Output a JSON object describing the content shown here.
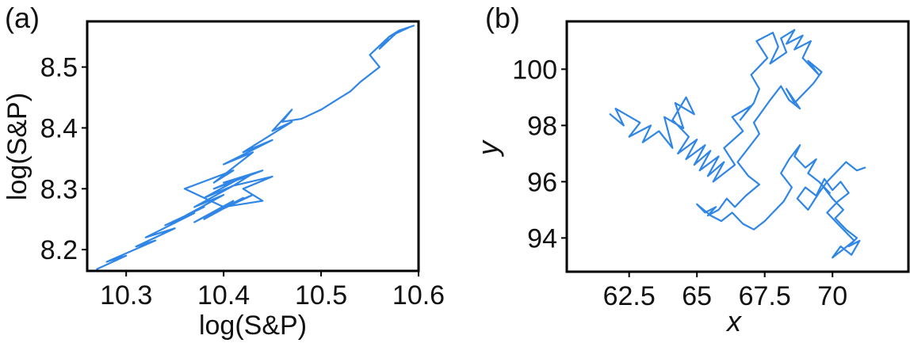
{
  "chart_data": [
    {
      "panel_label": "(a)",
      "type": "line",
      "xlabel": "log(S&P)",
      "ylabel": "log(S&P)",
      "xlim": [
        10.26,
        10.6
      ],
      "ylim": [
        8.165,
        8.575
      ],
      "xticks": [
        10.3,
        10.4,
        10.5,
        10.6
      ],
      "xtick_labels": [
        "10.3",
        "10.4",
        "10.5",
        "10.6"
      ],
      "yticks": [
        8.2,
        8.3,
        8.4,
        8.5
      ],
      "ytick_labels": [
        "8.2",
        "8.3",
        "8.4",
        "8.5"
      ],
      "grid": false,
      "line_color": "#2f86e6",
      "series": [
        {
          "x": [
            10.27,
            10.3,
            10.28,
            10.33,
            10.31,
            10.35,
            10.32,
            10.37,
            10.34,
            10.38,
            10.36,
            10.4,
            10.37,
            10.41,
            10.38,
            10.42,
            10.39,
            10.44,
            10.4,
            10.43,
            10.41,
            10.45,
            10.42,
            10.44,
            10.4,
            10.43,
            10.39,
            10.42,
            10.38,
            10.41,
            10.37,
            10.4,
            10.36,
            10.41,
            10.39,
            10.43,
            10.4,
            10.45,
            10.42,
            10.46,
            10.44,
            10.47,
            10.45,
            10.47,
            10.46,
            10.48,
            10.5,
            10.52,
            10.53,
            10.54,
            10.56,
            10.55,
            10.57,
            10.56,
            10.58,
            10.57,
            10.59,
            10.58,
            10.595
          ],
          "y": [
            8.168,
            8.19,
            8.18,
            8.215,
            8.205,
            8.235,
            8.22,
            8.26,
            8.24,
            8.27,
            8.255,
            8.29,
            8.27,
            8.305,
            8.285,
            8.32,
            8.3,
            8.33,
            8.31,
            8.325,
            8.305,
            8.32,
            8.3,
            8.28,
            8.27,
            8.29,
            8.26,
            8.285,
            8.25,
            8.28,
            8.245,
            8.27,
            8.3,
            8.33,
            8.31,
            8.36,
            8.34,
            8.38,
            8.36,
            8.4,
            8.38,
            8.41,
            8.395,
            8.43,
            8.41,
            8.415,
            8.43,
            8.45,
            8.46,
            8.475,
            8.5,
            8.52,
            8.55,
            8.53,
            8.56,
            8.55,
            8.565,
            8.56,
            8.568
          ]
        }
      ]
    },
    {
      "panel_label": "(b)",
      "type": "line",
      "xlabel": "x",
      "ylabel": "y",
      "xlim": [
        60.2,
        72.8
      ],
      "ylim": [
        92.8,
        101.7
      ],
      "xticks": [
        62.5,
        65,
        67.5,
        70
      ],
      "xtick_labels": [
        "62.5",
        "65",
        "67.5",
        "70"
      ],
      "yticks": [
        94,
        96,
        98,
        100
      ],
      "ytick_labels": [
        "94",
        "96",
        "98",
        "100"
      ],
      "grid": false,
      "line_color": "#2f86e6",
      "series": [
        {
          "x": [
            61.8,
            62.3,
            62.0,
            62.9,
            62.5,
            63.3,
            63.0,
            63.6,
            64.1,
            63.8,
            64.5,
            64.2,
            64.9,
            64.6,
            64.1,
            64.7,
            64.3,
            65.0,
            64.6,
            65.3,
            64.9,
            65.5,
            65.1,
            65.8,
            65.4,
            66.0,
            65.6,
            66.4,
            66.0,
            66.7,
            66.3,
            67.0,
            66.6,
            67.1,
            67.3,
            67.0,
            67.6,
            67.2,
            67.8,
            68.0,
            67.7,
            68.3,
            68.1,
            68.6,
            68.3,
            68.9,
            68.6,
            69.2,
            68.9,
            69.5,
            69.1,
            69.6,
            69.3,
            69.0,
            68.6,
            68.3,
            68.8,
            68.4,
            68.1,
            67.7,
            67.4,
            67.1,
            67.3,
            66.9,
            66.5,
            66.9,
            67.3,
            66.8,
            66.4,
            66.1,
            65.8,
            65.4,
            65.7,
            65.3,
            65.0,
            65.5,
            65.9,
            66.3,
            66.7,
            67.1,
            67.5,
            67.8,
            68.2,
            68.5,
            68.1,
            68.4,
            68.8,
            68.6,
            69.0,
            69.4,
            69.1,
            69.5,
            69.9,
            69.6,
            70.0,
            70.4,
            70.1,
            70.5,
            70.9,
            70.6,
            71.0,
            70.7,
            70.3,
            70.0,
            70.4,
            70.8,
            70.5,
            70.1,
            69.8,
            70.2,
            70.6,
            70.3,
            70.0,
            69.7,
            69.4,
            69.0,
            68.7,
            69.1,
            69.5,
            69.8,
            70.2,
            70.5,
            70.9,
            71.2
          ],
          "y": [
            98.4,
            98.0,
            98.6,
            98.1,
            97.6,
            98.0,
            97.4,
            97.8,
            97.2,
            98.3,
            97.9,
            98.8,
            98.4,
            99.0,
            98.2,
            97.6,
            97.0,
            97.5,
            96.8,
            97.3,
            96.6,
            97.1,
            96.4,
            96.9,
            96.2,
            96.7,
            96.0,
            96.6,
            97.2,
            97.8,
            98.3,
            98.7,
            98.2,
            98.8,
            99.3,
            99.8,
            100.4,
            101.0,
            101.3,
            100.8,
            100.2,
            100.6,
            101.1,
            101.4,
            100.9,
            101.2,
            100.7,
            101.0,
            100.4,
            99.8,
            100.3,
            99.9,
            99.5,
            99.2,
            98.8,
            99.3,
            98.6,
            98.9,
            99.4,
            98.9,
            98.5,
            98.1,
            97.7,
            97.2,
            96.7,
            96.2,
            95.9,
            95.5,
            95.1,
            95.4,
            95.0,
            94.8,
            95.1,
            94.9,
            95.2,
            94.8,
            94.6,
            94.9,
            94.5,
            94.3,
            94.6,
            94.9,
            95.3,
            95.8,
            96.3,
            96.8,
            97.3,
            96.9,
            96.5,
            96.8,
            96.3,
            96.0,
            95.6,
            95.9,
            95.4,
            95.0,
            94.7,
            94.3,
            94.0,
            93.7,
            93.9,
            93.4,
            93.7,
            93.3,
            93.6,
            93.9,
            94.2,
            94.6,
            94.9,
            95.3,
            95.6,
            96.0,
            95.7,
            96.1,
            95.5,
            95.8,
            95.4,
            95.0,
            95.6,
            96.0,
            96.4,
            96.7,
            96.4,
            96.5
          ]
        }
      ]
    }
  ]
}
